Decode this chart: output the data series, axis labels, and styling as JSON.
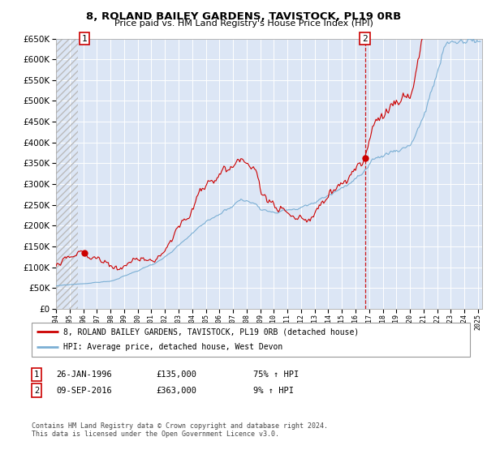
{
  "title1": "8, ROLAND BAILEY GARDENS, TAVISTOCK, PL19 0RB",
  "title2": "Price paid vs. HM Land Registry's House Price Index (HPI)",
  "legend_line1": "8, ROLAND BAILEY GARDENS, TAVISTOCK, PL19 0RB (detached house)",
  "legend_line2": "HPI: Average price, detached house, West Devon",
  "annotation1_date": "26-JAN-1996",
  "annotation1_price": "£135,000",
  "annotation1_hpi": "75% ↑ HPI",
  "annotation2_date": "09-SEP-2016",
  "annotation2_price": "£363,000",
  "annotation2_hpi": "9% ↑ HPI",
  "footer": "Contains HM Land Registry data © Crown copyright and database right 2024.\nThis data is licensed under the Open Government Licence v3.0.",
  "sale1_year": 1996.07,
  "sale1_price": 135000,
  "sale2_year": 2016.69,
  "sale2_price": 363000,
  "red_color": "#cc0000",
  "blue_color": "#7bafd4",
  "plot_bg": "#dce6f5",
  "grid_color": "#ffffff",
  "hatch_color": "#bbbbbb",
  "ylim_max": 650000,
  "ylim_min": 0,
  "start_year": 1994,
  "end_year": 2025
}
